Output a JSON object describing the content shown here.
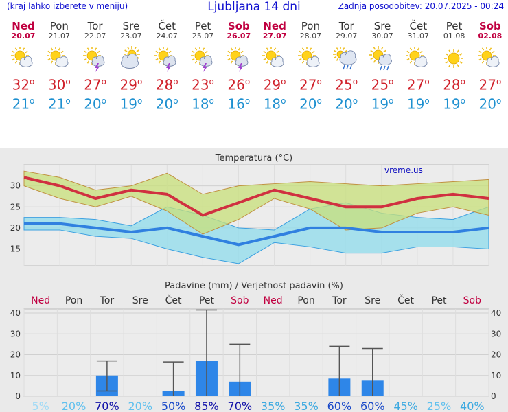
{
  "header": {
    "menu_hint": "(kraj lahko izberete v meniju)",
    "title": "Ljubljana 14 dni",
    "updated": "Zadnja posodobitev: 20.07.2025 - 00:24"
  },
  "days": [
    {
      "name": "Ned",
      "date": "20.07",
      "weekend": true,
      "icon": "sun-cloud-icon",
      "tmax": "32",
      "tmin": "21"
    },
    {
      "name": "Pon",
      "date": "21.07",
      "weekend": false,
      "icon": "sun-cloud-icon",
      "tmax": "30",
      "tmin": "21"
    },
    {
      "name": "Tor",
      "date": "22.07",
      "weekend": false,
      "icon": "sun-storm-icon",
      "tmax": "27",
      "tmin": "20"
    },
    {
      "name": "Sre",
      "date": "23.07",
      "weekend": false,
      "icon": "cloudy-sun-icon",
      "tmax": "29",
      "tmin": "19"
    },
    {
      "name": "Čet",
      "date": "24.07",
      "weekend": false,
      "icon": "sun-storm-icon",
      "tmax": "28",
      "tmin": "20"
    },
    {
      "name": "Pet",
      "date": "25.07",
      "weekend": false,
      "icon": "sun-storm-icon",
      "tmax": "23",
      "tmin": "18"
    },
    {
      "name": "Sob",
      "date": "26.07",
      "weekend": true,
      "icon": "sun-storm-icon",
      "tmax": "26",
      "tmin": "16"
    },
    {
      "name": "Ned",
      "date": "27.07",
      "weekend": true,
      "icon": "sun-cloud-icon",
      "tmax": "29",
      "tmin": "18"
    },
    {
      "name": "Pon",
      "date": "28.07",
      "weekend": false,
      "icon": "sun-cloud-icon",
      "tmax": "27",
      "tmin": "20"
    },
    {
      "name": "Tor",
      "date": "29.07",
      "weekend": false,
      "icon": "cloud-rain-icon",
      "tmax": "25",
      "tmin": "20"
    },
    {
      "name": "Sre",
      "date": "30.07",
      "weekend": false,
      "icon": "sun-rain-icon",
      "tmax": "25",
      "tmin": "19"
    },
    {
      "name": "Čet",
      "date": "31.07",
      "weekend": false,
      "icon": "sun-cloud-icon",
      "tmax": "27",
      "tmin": "19"
    },
    {
      "name": "Pet",
      "date": "01.08",
      "weekend": false,
      "icon": "sun-icon",
      "tmax": "28",
      "tmin": "19"
    },
    {
      "name": "Sob",
      "date": "02.08",
      "weekend": true,
      "icon": "sun-cloud-icon",
      "tmax": "27",
      "tmin": "20"
    }
  ],
  "temp_unit": "o",
  "chart_data": [
    {
      "type": "line",
      "title": "Temperatura (°C)",
      "watermark": "vreme.us",
      "ylim": [
        11,
        35
      ],
      "yticks": [
        15,
        20,
        25,
        30
      ],
      "series": [
        {
          "name": "tmax",
          "values": [
            32,
            30,
            27,
            29,
            28,
            23,
            26,
            29,
            27,
            25,
            25,
            27,
            28,
            27
          ],
          "color": "#d03040"
        },
        {
          "name": "tmax_range_high",
          "values": [
            33.5,
            32,
            29,
            30,
            33,
            28,
            30,
            30.5,
            31,
            30.5,
            30,
            30.5,
            31,
            31.5
          ]
        },
        {
          "name": "tmax_range_low",
          "values": [
            30,
            27,
            25,
            27.5,
            24,
            18.5,
            22,
            27,
            24.5,
            19.5,
            20,
            23.5,
            25,
            23
          ]
        },
        {
          "name": "tmin",
          "values": [
            21,
            21,
            20,
            19,
            20,
            18,
            16,
            18,
            20,
            20,
            19,
            19,
            19,
            20
          ],
          "color": "#3080e0"
        },
        {
          "name": "tmin_range_high",
          "values": [
            22.5,
            22.5,
            22,
            20.5,
            25,
            23,
            20,
            19.5,
            24.5,
            26,
            23.5,
            22.5,
            22,
            25
          ]
        },
        {
          "name": "tmin_range_low",
          "values": [
            19.5,
            19.5,
            18,
            17.5,
            15,
            13,
            11.5,
            16.5,
            15.5,
            14,
            14,
            15.5,
            15.5,
            15
          ]
        }
      ]
    },
    {
      "type": "bar",
      "title": "Padavine (mm) / Verjetnost padavin (%)",
      "ylim": [
        0,
        42
      ],
      "yticks": [
        0,
        10,
        20,
        30,
        40
      ],
      "categories": [
        "Ned",
        "Pon",
        "Tor",
        "Sre",
        "Čet",
        "Pet",
        "Sob",
        "Ned",
        "Pon",
        "Tor",
        "Sre",
        "Čet",
        "Pet",
        "Sob"
      ],
      "values": [
        0,
        0,
        10,
        0,
        2.5,
        17,
        7,
        0,
        0,
        8.5,
        7.5,
        0,
        0,
        0
      ],
      "error_high": [
        0,
        0,
        17,
        0,
        16.5,
        41.5,
        25,
        0,
        0,
        24,
        23,
        0,
        0,
        0
      ],
      "error_low": [
        0,
        0,
        2.5,
        0,
        0,
        0,
        0,
        0,
        0,
        0,
        0,
        0,
        0,
        0
      ],
      "probabilities": [
        "5%",
        "20%",
        "70%",
        "20%",
        "50%",
        "85%",
        "70%",
        "35%",
        "35%",
        "60%",
        "60%",
        "45%",
        "25%",
        "40%"
      ],
      "prob_values": [
        5,
        20,
        70,
        20,
        50,
        85,
        70,
        35,
        35,
        60,
        60,
        45,
        25,
        40
      ]
    }
  ]
}
